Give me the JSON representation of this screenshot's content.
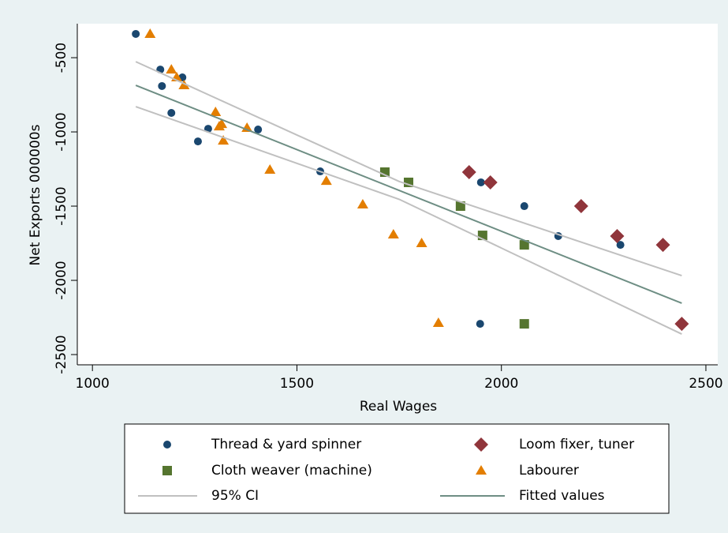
{
  "chart_data": {
    "type": "scatter",
    "xlabel": "Real Wages",
    "ylabel": "Net Exports 000000s",
    "xlim": [
      963,
      2529
    ],
    "ylim": [
      -2569,
      -271
    ],
    "xticks": [
      1000,
      1500,
      2000,
      2500
    ],
    "yticks": [
      -500,
      -1000,
      -1500,
      -2000,
      -2500
    ],
    "series": [
      {
        "name": "Thread & yard spinner",
        "color": "#1a476f",
        "marker": "circle",
        "x": [
          1106,
          1166,
          1170,
          1193,
          1220,
          1258,
          1283,
          1405,
          1557,
          1950,
          1948,
          2056,
          2139,
          2291
        ],
        "values": [
          -340,
          -580,
          -691,
          -872,
          -633,
          -1064,
          -979,
          -984,
          -1266,
          -1340,
          -2293,
          -1500,
          -1702,
          -1761
        ]
      },
      {
        "name": "Loom fixer, tuner",
        "color": "#90353b",
        "marker": "diamond",
        "x": [
          1921,
          1973,
          2195,
          2283,
          2395,
          2441
        ],
        "values": [
          -1271,
          -1340,
          -1500,
          -1702,
          -1761,
          -2293
        ]
      },
      {
        "name": "Cloth weaver (machine)",
        "color": "#55752f",
        "marker": "square",
        "x": [
          1715,
          1773,
          1900,
          1954,
          2056,
          2056
        ],
        "values": [
          -1271,
          -1340,
          -1500,
          -1697,
          -1761,
          -2293
        ]
      },
      {
        "name": "Labourer",
        "color": "#e37e00",
        "marker": "triangle",
        "x": [
          1141,
          1193,
          1206,
          1224,
          1301,
          1310,
          1316,
          1320,
          1378,
          1434,
          1572,
          1661,
          1736,
          1805,
          1846
        ],
        "values": [
          -340,
          -580,
          -633,
          -686,
          -867,
          -963,
          -947,
          -1059,
          -973,
          -1255,
          -1330,
          -1489,
          -1691,
          -1750,
          -2287
        ]
      },
      {
        "name": "95% CI",
        "color": "#c0c0c0",
        "marker": "line",
        "x": [
          1106,
          1750,
          2441
        ],
        "upper": [
          -527,
          -1334,
          -1968
        ],
        "lower": [
          -830,
          -1454,
          -2362
        ]
      },
      {
        "name": "Fitted values",
        "color": "#6e8e84",
        "marker": "line",
        "x": [
          1106,
          2441
        ],
        "values": [
          -686,
          -2154
        ]
      }
    ]
  }
}
